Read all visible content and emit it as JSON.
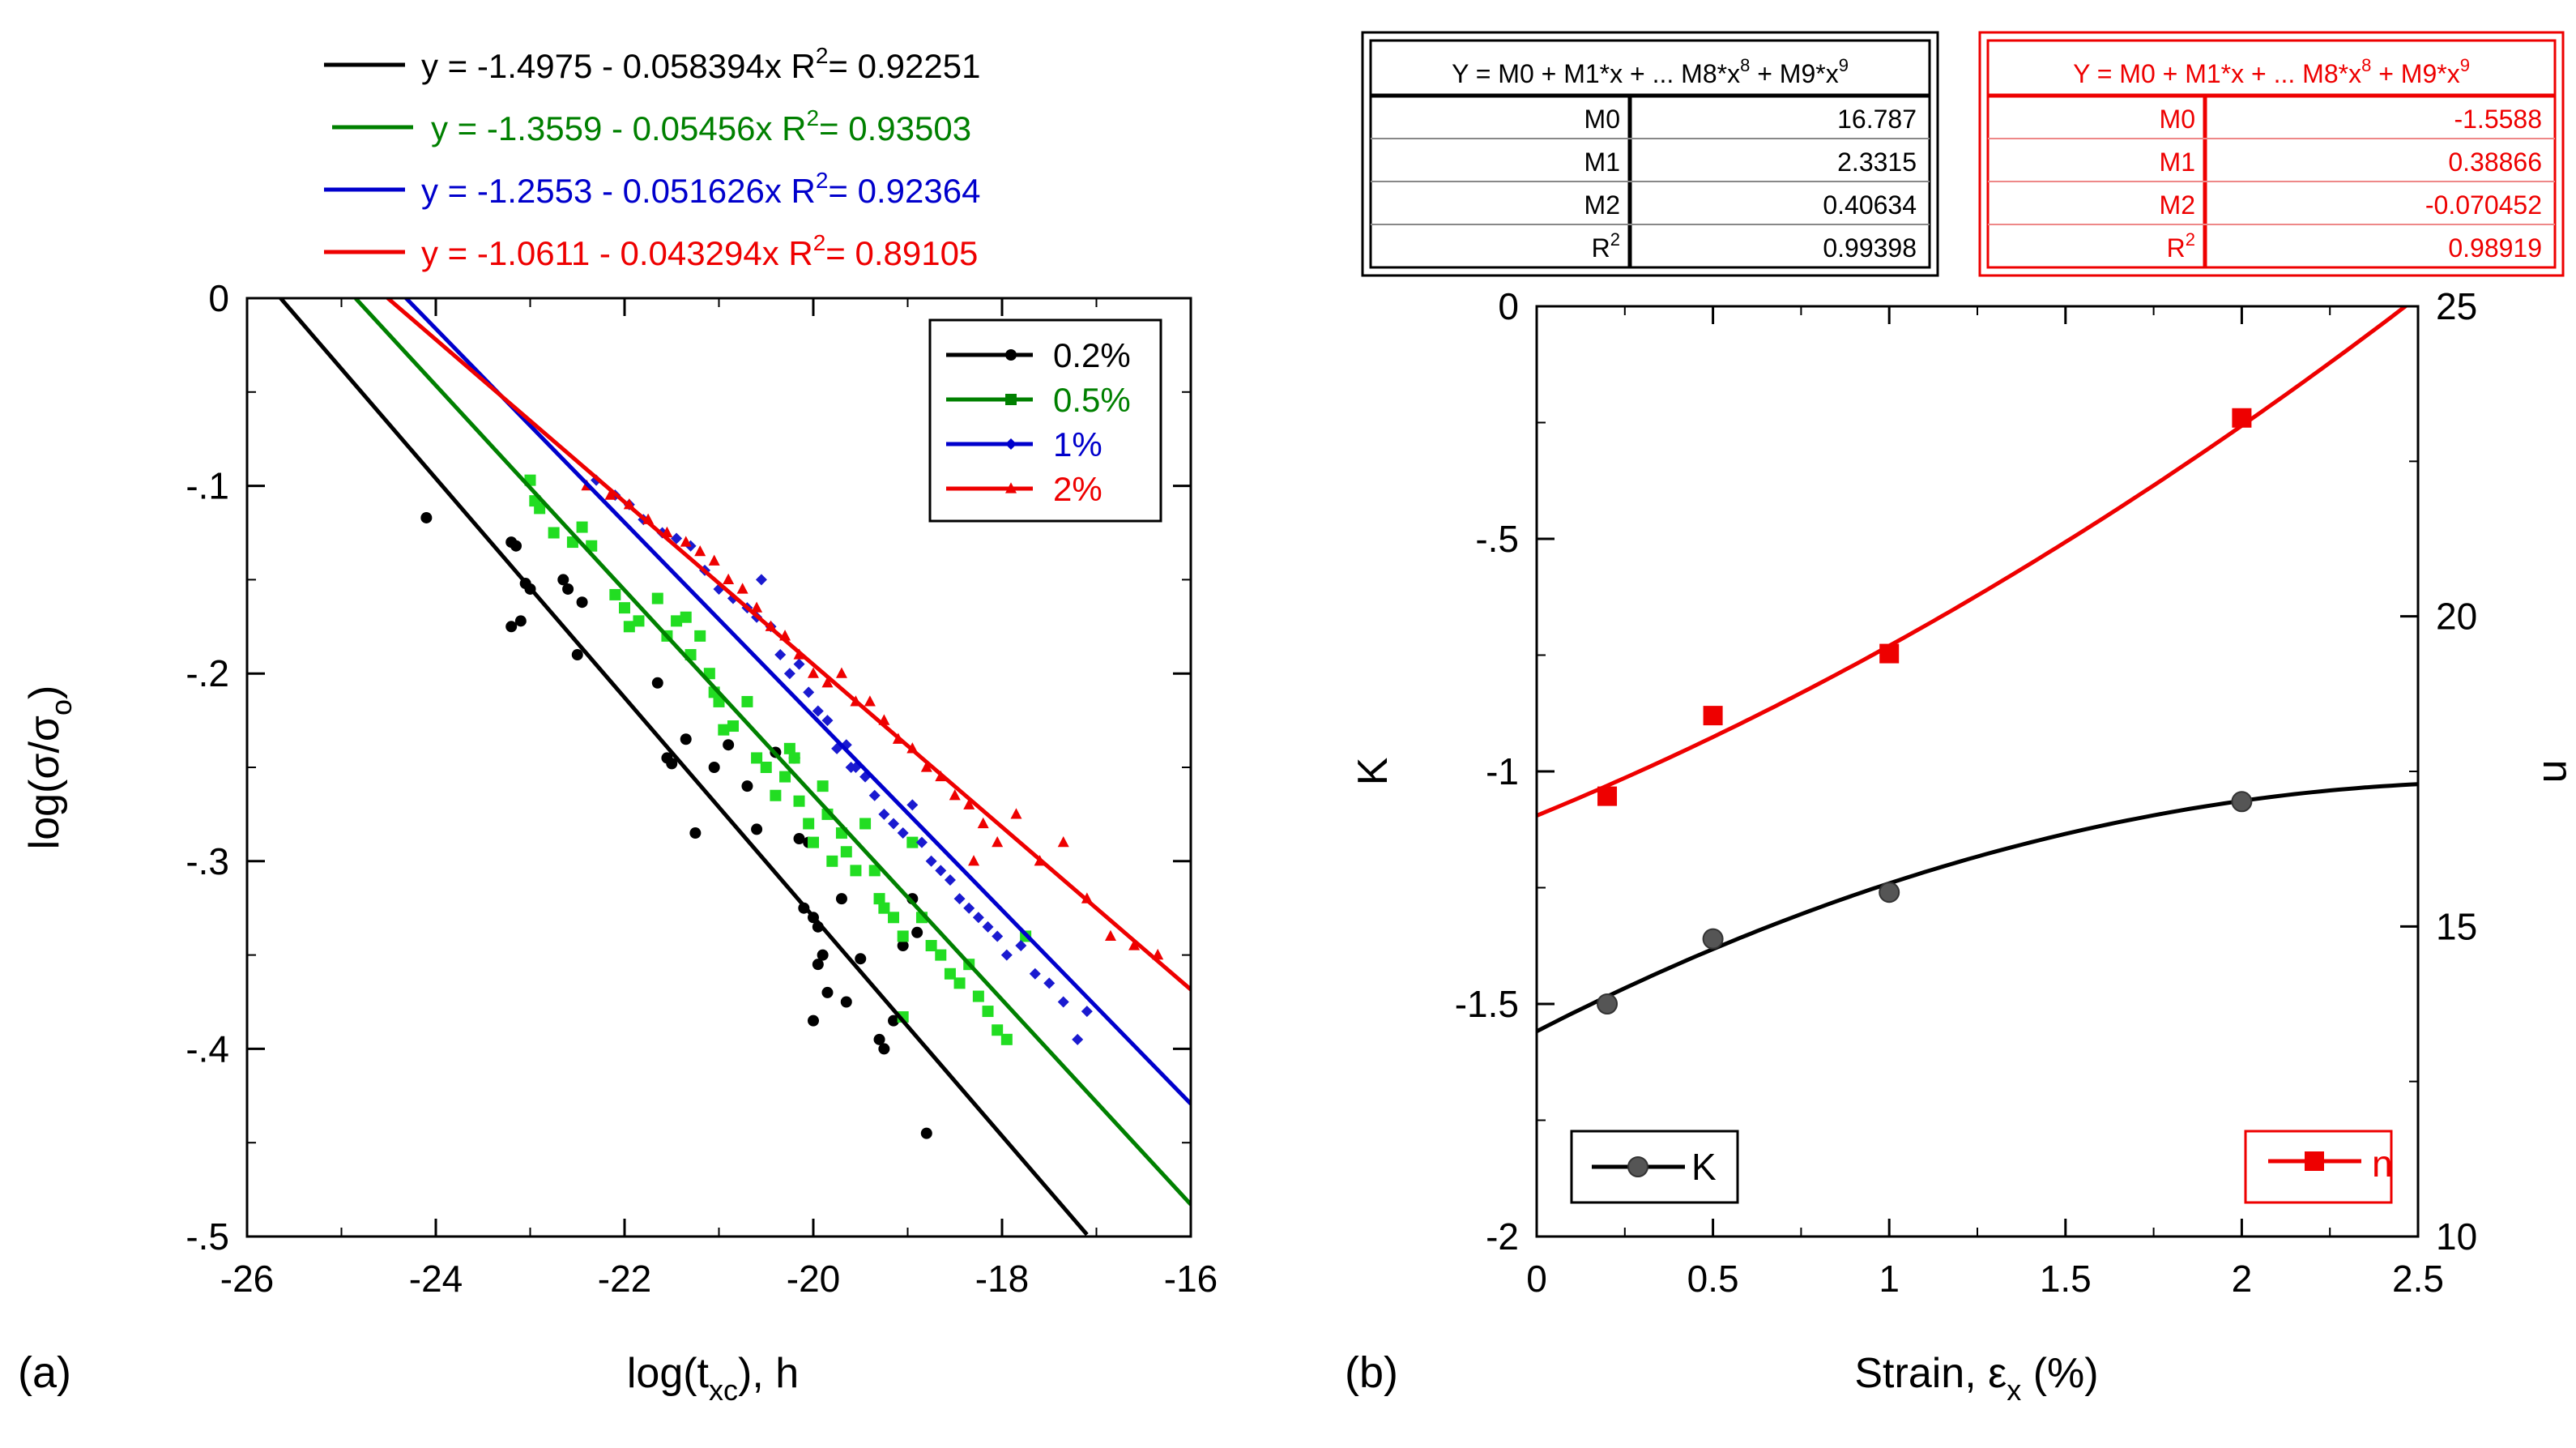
{
  "panel_labels": [
    "(a)",
    "(b)"
  ],
  "chart_data": [
    {
      "type": "scatter",
      "panel": "(a)",
      "xlabel": "log(t_xc), h",
      "ylabel": "log(σ/σ_o)",
      "xlim": [
        -26,
        -16
      ],
      "ylim": [
        -0.5,
        0
      ],
      "xticks": [
        -26,
        -24,
        -22,
        -20,
        -18,
        -16
      ],
      "yticks": [
        0,
        -0.1,
        -0.2,
        -0.3,
        -0.4,
        -0.5
      ],
      "grid": false,
      "legend_position": "top-right",
      "fit_equations": [
        {
          "eq": "y = -1.4975 - 0.058394x",
          "r2_label": "R",
          "r2_value": "= 0.92251",
          "color": "#000000"
        },
        {
          "eq": "y = -1.3559 - 0.05456x",
          "r2_label": "R",
          "r2_value": "= 0.93503",
          "color": "#008000"
        },
        {
          "eq": "y = -1.2553 - 0.051626x",
          "r2_label": "R",
          "r2_value": "= 0.92364",
          "color": "#0000cc"
        },
        {
          "eq": "y = -1.0611 - 0.043294x",
          "r2_label": "R",
          "r2_value": "= 0.89105",
          "color": "#ee0000"
        }
      ],
      "series": [
        {
          "name": "0.2%",
          "color": "#000000",
          "line_color": "#000000",
          "marker": "circle",
          "fit": {
            "intercept": -1.4975,
            "slope": -0.058394,
            "x_range": [
              -25.65,
              -17.1
            ]
          },
          "points": [
            [
              -24.1,
              -0.117
            ],
            [
              -23.2,
              -0.13
            ],
            [
              -23.15,
              -0.132
            ],
            [
              -23.05,
              -0.152
            ],
            [
              -23.0,
              -0.155
            ],
            [
              -23.2,
              -0.175
            ],
            [
              -23.1,
              -0.172
            ],
            [
              -22.65,
              -0.15
            ],
            [
              -22.6,
              -0.155
            ],
            [
              -22.45,
              -0.162
            ],
            [
              -22.5,
              -0.19
            ],
            [
              -21.65,
              -0.205
            ],
            [
              -21.5,
              -0.248
            ],
            [
              -21.55,
              -0.245
            ],
            [
              -21.35,
              -0.235
            ],
            [
              -21.25,
              -0.285
            ],
            [
              -21.05,
              -0.25
            ],
            [
              -20.9,
              -0.238
            ],
            [
              -20.7,
              -0.26
            ],
            [
              -20.6,
              -0.283
            ],
            [
              -20.4,
              -0.242
            ],
            [
              -20.2,
              -0.245
            ],
            [
              -20.15,
              -0.288
            ],
            [
              -20.1,
              -0.325
            ],
            [
              -20.05,
              -0.29
            ],
            [
              -20.0,
              -0.33
            ],
            [
              -19.95,
              -0.335
            ],
            [
              -19.95,
              -0.355
            ],
            [
              -19.9,
              -0.35
            ],
            [
              -19.85,
              -0.37
            ],
            [
              -20.0,
              -0.385
            ],
            [
              -19.65,
              -0.375
            ],
            [
              -19.7,
              -0.32
            ],
            [
              -19.5,
              -0.352
            ],
            [
              -19.3,
              -0.395
            ],
            [
              -19.25,
              -0.4
            ],
            [
              -19.15,
              -0.385
            ],
            [
              -19.05,
              -0.345
            ],
            [
              -18.95,
              -0.32
            ],
            [
              -18.9,
              -0.338
            ],
            [
              -18.8,
              -0.445
            ]
          ]
        },
        {
          "name": "0.5%",
          "color": "#22dd22",
          "line_color": "#008000",
          "marker": "square",
          "fit": {
            "intercept": -1.3559,
            "slope": -0.05456,
            "x_range": [
              -24.85,
              -16
            ]
          },
          "points": [
            [
              -23.0,
              -0.097
            ],
            [
              -22.95,
              -0.108
            ],
            [
              -22.9,
              -0.112
            ],
            [
              -22.75,
              -0.125
            ],
            [
              -22.55,
              -0.13
            ],
            [
              -22.45,
              -0.122
            ],
            [
              -22.35,
              -0.132
            ],
            [
              -22.1,
              -0.158
            ],
            [
              -22.0,
              -0.165
            ],
            [
              -21.95,
              -0.175
            ],
            [
              -21.85,
              -0.172
            ],
            [
              -21.65,
              -0.16
            ],
            [
              -21.55,
              -0.18
            ],
            [
              -21.45,
              -0.172
            ],
            [
              -21.35,
              -0.17
            ],
            [
              -21.3,
              -0.19
            ],
            [
              -21.2,
              -0.18
            ],
            [
              -21.1,
              -0.2
            ],
            [
              -21.05,
              -0.21
            ],
            [
              -21.0,
              -0.215
            ],
            [
              -20.95,
              -0.23
            ],
            [
              -20.85,
              -0.228
            ],
            [
              -20.7,
              -0.215
            ],
            [
              -20.6,
              -0.245
            ],
            [
              -20.5,
              -0.25
            ],
            [
              -20.4,
              -0.265
            ],
            [
              -20.3,
              -0.255
            ],
            [
              -20.25,
              -0.24
            ],
            [
              -20.2,
              -0.245
            ],
            [
              -20.15,
              -0.268
            ],
            [
              -20.05,
              -0.28
            ],
            [
              -20.0,
              -0.29
            ],
            [
              -19.9,
              -0.26
            ],
            [
              -19.85,
              -0.275
            ],
            [
              -19.8,
              -0.3
            ],
            [
              -19.7,
              -0.285
            ],
            [
              -19.65,
              -0.295
            ],
            [
              -19.55,
              -0.305
            ],
            [
              -19.45,
              -0.28
            ],
            [
              -19.35,
              -0.305
            ],
            [
              -19.3,
              -0.32
            ],
            [
              -19.25,
              -0.325
            ],
            [
              -19.15,
              -0.33
            ],
            [
              -19.05,
              -0.34
            ],
            [
              -18.95,
              -0.29
            ],
            [
              -18.85,
              -0.33
            ],
            [
              -18.75,
              -0.345
            ],
            [
              -18.65,
              -0.35
            ],
            [
              -18.55,
              -0.36
            ],
            [
              -18.45,
              -0.365
            ],
            [
              -18.35,
              -0.355
            ],
            [
              -18.25,
              -0.372
            ],
            [
              -18.15,
              -0.38
            ],
            [
              -18.05,
              -0.39
            ],
            [
              -17.95,
              -0.395
            ],
            [
              -17.75,
              -0.34
            ],
            [
              -19.05,
              -0.383
            ]
          ]
        },
        {
          "name": "1%",
          "color": "#1a1ad0",
          "line_color": "#0000cc",
          "marker": "diamond",
          "fit": {
            "intercept": -1.2553,
            "slope": -0.051626,
            "x_range": [
              -24.32,
              -16
            ]
          },
          "points": [
            [
              -22.3,
              -0.097
            ],
            [
              -22.1,
              -0.105
            ],
            [
              -21.95,
              -0.11
            ],
            [
              -21.8,
              -0.118
            ],
            [
              -21.6,
              -0.125
            ],
            [
              -21.45,
              -0.128
            ],
            [
              -21.3,
              -0.132
            ],
            [
              -21.15,
              -0.145
            ],
            [
              -21.0,
              -0.155
            ],
            [
              -20.85,
              -0.16
            ],
            [
              -20.7,
              -0.165
            ],
            [
              -20.55,
              -0.15
            ],
            [
              -20.45,
              -0.175
            ],
            [
              -20.35,
              -0.19
            ],
            [
              -20.25,
              -0.2
            ],
            [
              -20.15,
              -0.195
            ],
            [
              -20.05,
              -0.21
            ],
            [
              -19.95,
              -0.22
            ],
            [
              -19.85,
              -0.225
            ],
            [
              -19.75,
              -0.24
            ],
            [
              -19.65,
              -0.238
            ],
            [
              -19.55,
              -0.25
            ],
            [
              -19.45,
              -0.255
            ],
            [
              -19.35,
              -0.265
            ],
            [
              -19.25,
              -0.275
            ],
            [
              -19.15,
              -0.28
            ],
            [
              -19.05,
              -0.285
            ],
            [
              -18.95,
              -0.27
            ],
            [
              -18.85,
              -0.29
            ],
            [
              -18.75,
              -0.3
            ],
            [
              -18.65,
              -0.305
            ],
            [
              -18.55,
              -0.31
            ],
            [
              -18.45,
              -0.32
            ],
            [
              -18.35,
              -0.325
            ],
            [
              -18.25,
              -0.33
            ],
            [
              -18.15,
              -0.335
            ],
            [
              -18.05,
              -0.34
            ],
            [
              -17.95,
              -0.35
            ],
            [
              -17.8,
              -0.345
            ],
            [
              -17.65,
              -0.36
            ],
            [
              -17.5,
              -0.365
            ],
            [
              -17.35,
              -0.375
            ],
            [
              -17.2,
              -0.395
            ],
            [
              -17.1,
              -0.38
            ],
            [
              -20.6,
              -0.17
            ],
            [
              -19.6,
              -0.25
            ]
          ]
        },
        {
          "name": "2%",
          "color": "#ee0000",
          "line_color": "#ee0000",
          "marker": "triangle",
          "fit": {
            "intercept": -1.0611,
            "slope": -0.043294,
            "x_range": [
              -24.51,
              -16
            ]
          },
          "points": [
            [
              -22.4,
              -0.1
            ],
            [
              -22.15,
              -0.105
            ],
            [
              -21.95,
              -0.11
            ],
            [
              -21.75,
              -0.118
            ],
            [
              -21.55,
              -0.125
            ],
            [
              -21.35,
              -0.13
            ],
            [
              -21.2,
              -0.135
            ],
            [
              -21.05,
              -0.14
            ],
            [
              -20.9,
              -0.15
            ],
            [
              -20.75,
              -0.155
            ],
            [
              -20.6,
              -0.165
            ],
            [
              -20.45,
              -0.175
            ],
            [
              -20.3,
              -0.18
            ],
            [
              -20.15,
              -0.19
            ],
            [
              -20.0,
              -0.2
            ],
            [
              -19.85,
              -0.205
            ],
            [
              -19.7,
              -0.2
            ],
            [
              -19.55,
              -0.215
            ],
            [
              -19.4,
              -0.215
            ],
            [
              -19.25,
              -0.225
            ],
            [
              -19.1,
              -0.235
            ],
            [
              -18.95,
              -0.24
            ],
            [
              -18.8,
              -0.25
            ],
            [
              -18.65,
              -0.255
            ],
            [
              -18.5,
              -0.265
            ],
            [
              -18.35,
              -0.27
            ],
            [
              -18.2,
              -0.28
            ],
            [
              -18.05,
              -0.29
            ],
            [
              -17.85,
              -0.275
            ],
            [
              -17.6,
              -0.3
            ],
            [
              -17.35,
              -0.29
            ],
            [
              -17.1,
              -0.32
            ],
            [
              -16.85,
              -0.34
            ],
            [
              -16.6,
              -0.345
            ],
            [
              -16.35,
              -0.35
            ],
            [
              -18.3,
              -0.3
            ]
          ]
        }
      ]
    },
    {
      "type": "line",
      "panel": "(b)",
      "xlabel": "Strain, ε_x (%)",
      "ylabel_left": "K",
      "ylabel_right": "n",
      "xlim": [
        0,
        2.5
      ],
      "ylim_left": [
        -2,
        0
      ],
      "ylim_right": [
        10,
        25
      ],
      "xticks": [
        0,
        0.5,
        1,
        1.5,
        2,
        2.5
      ],
      "yticks_left": [
        0,
        -0.5,
        -1,
        -1.5,
        -2
      ],
      "yticks_right": [
        25,
        20,
        15,
        10
      ],
      "grid": false,
      "series": [
        {
          "name": "K",
          "axis": "left",
          "color": "#000000",
          "marker_color": "#555555",
          "marker": "circle",
          "x": [
            0.2,
            0.5,
            1,
            2
          ],
          "y": [
            -1.5,
            -1.36,
            -1.26,
            -1.065
          ],
          "fit_coeffs": [
            -1.5588,
            0.38866,
            -0.070452
          ]
        },
        {
          "name": "n",
          "axis": "right",
          "color": "#ee0000",
          "marker_color": "#ee0000",
          "marker": "square",
          "x": [
            0.2,
            0.5,
            1,
            2
          ],
          "y": [
            17.1,
            18.4,
            19.4,
            23.2
          ],
          "fit_coeffs": [
            16.787,
            2.3315,
            0.40634
          ]
        }
      ],
      "fit_tables": [
        {
          "header": "Y = M0 + M1*x + ... M8*x8 + M9*x9",
          "header_parts": [
            "Y = M0 + M1*x + ... M8*x",
            "8",
            " + M9*x",
            "9"
          ],
          "rows": [
            {
              "label": "M0",
              "value": "16.787"
            },
            {
              "label": "M1",
              "value": "2.3315"
            },
            {
              "label": "M2",
              "value": "0.40634"
            },
            {
              "label": "R",
              "value": "0.99398"
            }
          ],
          "color": "#000000"
        },
        {
          "header": "Y = M0 + M1*x + ... M8*x8 + M9*x9",
          "header_parts": [
            "Y = M0 + M1*x + ... M8*x",
            "8",
            " + M9*x",
            "9"
          ],
          "rows": [
            {
              "label": "M0",
              "value": "-1.5588"
            },
            {
              "label": "M1",
              "value": "0.38866"
            },
            {
              "label": "M2",
              "value": "-0.070452"
            },
            {
              "label": "R",
              "value": "0.98919"
            }
          ],
          "color": "#ee0000"
        }
      ]
    }
  ]
}
